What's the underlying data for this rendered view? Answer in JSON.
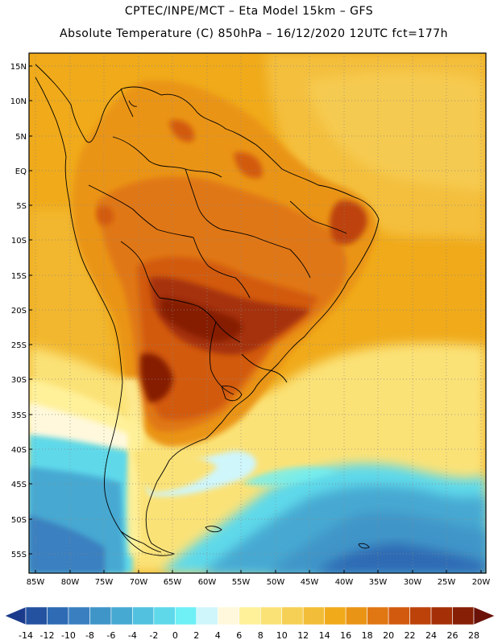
{
  "header": {
    "line1": "CPTEC/INPE/MCT –  Eta Model 15km – GFS",
    "line2": "Absolute Temperature (C) 850hPa – 16/12/2020 12UTC fct=177h"
  },
  "map": {
    "lat_ticks": [
      "15N",
      "10N",
      "5N",
      "EQ",
      "5S",
      "10S",
      "15S",
      "20S",
      "25S",
      "30S",
      "35S",
      "40S",
      "45S",
      "50S",
      "55S"
    ],
    "lon_ticks": [
      "85W",
      "80W",
      "75W",
      "70W",
      "65W",
      "60W",
      "55W",
      "50W",
      "45W",
      "40W",
      "35W",
      "30W",
      "25W",
      "20W"
    ]
  },
  "colorbar": {
    "labels": [
      "-14",
      "-12",
      "-10",
      "-8",
      "-6",
      "-4",
      "-2",
      "0",
      "2",
      "4",
      "6",
      "8",
      "10",
      "12",
      "14",
      "16",
      "18",
      "20",
      "22",
      "24",
      "26",
      "28"
    ],
    "colors": [
      "#1a3a8c",
      "#2452a0",
      "#2e6bb4",
      "#3a80c0",
      "#3f95c8",
      "#46a9d2",
      "#52c1df",
      "#5fd9ea",
      "#6ef0f6",
      "#cff6fb",
      "#fff8dc",
      "#fff19a",
      "#fbe277",
      "#f6cf55",
      "#f2bd38",
      "#f0aa1a",
      "#ea9415",
      "#e07713",
      "#d25a0e",
      "#bd420a",
      "#a53008",
      "#861f06",
      "#6a1208"
    ]
  }
}
